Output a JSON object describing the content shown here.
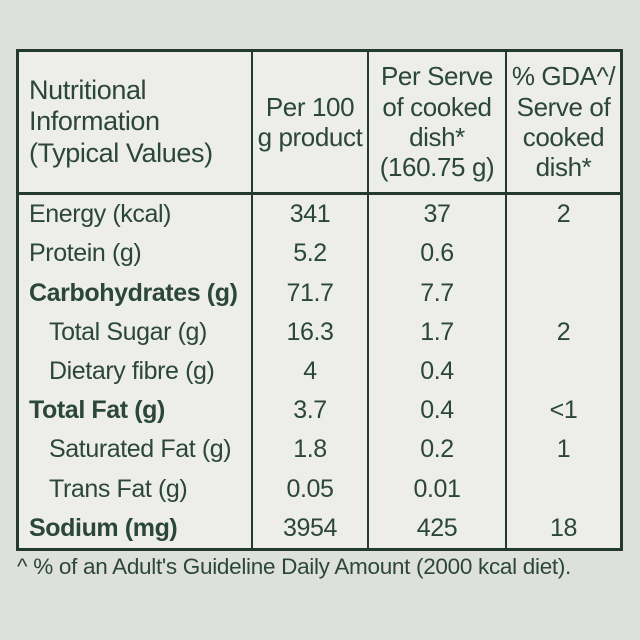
{
  "table": {
    "headers": [
      "Nutritional Information (Typical Values)",
      "Per 100 g product",
      "Per Serve of cooked dish* (160.75 g)",
      "% GDA^/ Serve of cooked dish*"
    ],
    "rows": [
      {
        "label": "Energy (kcal)",
        "per_100g": "341",
        "per_serve": "37",
        "gda_percent": "2"
      },
      {
        "label": "Protein (g)",
        "per_100g": "5.2",
        "per_serve": "0.6",
        "gda_percent": ""
      },
      {
        "label": "Carbohydrates (g)",
        "per_100g": "71.7",
        "per_serve": "7.7",
        "gda_percent": ""
      },
      {
        "label": "Total Sugar (g)",
        "per_100g": "16.3",
        "per_serve": "1.7",
        "gda_percent": "2"
      },
      {
        "label": "Dietary fibre (g)",
        "per_100g": "4",
        "per_serve": "0.4",
        "gda_percent": ""
      },
      {
        "label": "Total Fat (g)",
        "per_100g": "3.7",
        "per_serve": "0.4",
        "gda_percent": "<1"
      },
      {
        "label": "Saturated Fat (g)",
        "per_100g": "1.8",
        "per_serve": "0.2",
        "gda_percent": "1"
      },
      {
        "label": "Trans Fat (g)",
        "per_100g": "0.05",
        "per_serve": "0.01",
        "gda_percent": ""
      },
      {
        "label": "Sodium (mg)",
        "per_100g": "3954",
        "per_serve": "425",
        "gda_percent": "18"
      }
    ]
  },
  "footnote": "^ % of an Adult's Guideline Daily Amount (2000 kcal diet).",
  "colors": {
    "page_background": "#dee0dc",
    "table_background": "#edeee9",
    "border_green": "#243a2e",
    "text_green": "#2b463a"
  }
}
